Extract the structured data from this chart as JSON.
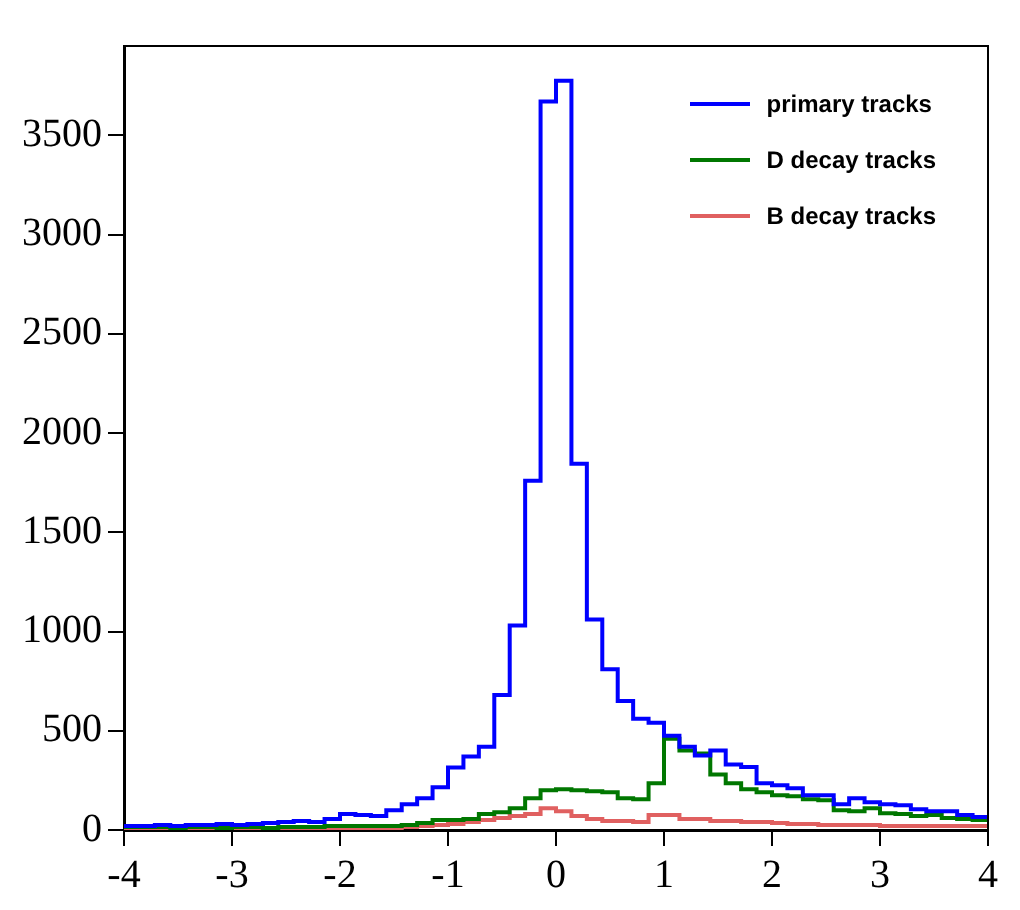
{
  "chart_data": {
    "type": "histogram",
    "bins": [
      -4,
      -3.8571,
      -3.7143,
      -3.5714,
      -3.4286,
      -3.2857,
      -3.1429,
      -3,
      -2.8571,
      -2.7143,
      -2.5714,
      -2.4286,
      -2.2857,
      -2.1429,
      -2,
      -1.8571,
      -1.7143,
      -1.5714,
      -1.4286,
      -1.2857,
      -1.1429,
      -1,
      -0.8571,
      -0.7143,
      -0.5714,
      -0.4286,
      -0.2857,
      -0.1429,
      0,
      0.1429,
      0.2857,
      0.4286,
      0.5714,
      0.7143,
      0.8571,
      1,
      1.1429,
      1.2857,
      1.4286,
      1.5714,
      1.7143,
      1.8571,
      2,
      2.1429,
      2.2857,
      2.4286,
      2.5714,
      2.7143,
      2.8571,
      3,
      3.1429,
      3.2857,
      3.4286,
      3.5714,
      3.7143,
      3.8571,
      4
    ],
    "series": [
      {
        "name": "primary tracks",
        "color": "#0000ff",
        "values": [
          20,
          20,
          25,
          20,
          25,
          25,
          30,
          25,
          30,
          35,
          40,
          45,
          40,
          55,
          80,
          75,
          70,
          100,
          130,
          160,
          215,
          315,
          370,
          420,
          680,
          1030,
          1760,
          3670,
          3775,
          1845,
          1060,
          810,
          650,
          560,
          540,
          475,
          420,
          375,
          400,
          330,
          317,
          235,
          225,
          210,
          175,
          175,
          130,
          160,
          140,
          130,
          125,
          105,
          95,
          95,
          75,
          65
        ]
      },
      {
        "name": "D decay tracks",
        "color": "#007700",
        "values": [
          15,
          15,
          15,
          10,
          15,
          15,
          10,
          15,
          15,
          10,
          15,
          15,
          15,
          20,
          20,
          20,
          20,
          20,
          25,
          35,
          50,
          50,
          55,
          80,
          90,
          110,
          160,
          200,
          205,
          200,
          195,
          190,
          160,
          155,
          235,
          460,
          400,
          385,
          280,
          235,
          205,
          190,
          175,
          170,
          155,
          150,
          100,
          95,
          110,
          85,
          80,
          70,
          75,
          60,
          55,
          50
        ]
      },
      {
        "name": "B decay tracks",
        "color": "#e06060",
        "values": [
          8,
          8,
          8,
          8,
          8,
          8,
          8,
          8,
          8,
          8,
          8,
          8,
          8,
          8,
          8,
          8,
          8,
          10,
          15,
          20,
          25,
          30,
          40,
          50,
          60,
          70,
          80,
          110,
          95,
          70,
          55,
          45,
          45,
          40,
          75,
          75,
          55,
          55,
          45,
          45,
          40,
          40,
          35,
          30,
          30,
          25,
          25,
          25,
          25,
          20,
          20,
          20,
          20,
          20,
          20,
          20
        ]
      }
    ],
    "xlim": [
      -4,
      4
    ],
    "xticks": [
      -4,
      -3,
      -2,
      -1,
      0,
      1,
      2,
      3,
      4
    ],
    "ylim": [
      0,
      3950
    ],
    "yticks": [
      0,
      500,
      1000,
      1500,
      2000,
      2500,
      3000,
      3500
    ],
    "grid": false,
    "legend": "top right"
  }
}
